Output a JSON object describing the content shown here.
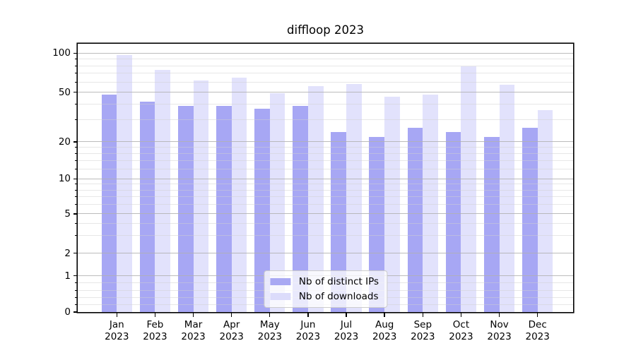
{
  "chart_data": {
    "type": "bar",
    "title": "diffloop 2023",
    "categories": [
      "Jan 2023",
      "Feb 2023",
      "Mar 2023",
      "Apr 2023",
      "May 2023",
      "Jun 2023",
      "Jul 2023",
      "Aug 2023",
      "Sep 2023",
      "Oct 2023",
      "Nov 2023",
      "Dec 2023"
    ],
    "x_tick_line1": [
      "Jan",
      "Feb",
      "Mar",
      "Apr",
      "May",
      "Jun",
      "Jul",
      "Aug",
      "Sep",
      "Oct",
      "Nov",
      "Dec"
    ],
    "x_tick_line2": "2023",
    "series": [
      {
        "name": "Nb of distinct IPs",
        "color": "#a9a9f3",
        "fill": "rgba(138,138,240,0.75)",
        "values": [
          48,
          42,
          39,
          39,
          37,
          39,
          24,
          22,
          26,
          24,
          22,
          26
        ]
      },
      {
        "name": "Nb of downloads",
        "color": "#dcdcfb",
        "fill": "rgba(211,211,250,0.65)",
        "values": [
          97,
          74,
          62,
          65,
          49,
          56,
          58,
          46,
          48,
          79,
          57,
          36
        ]
      }
    ],
    "y_axis": {
      "scale": "asinh-like: logarithmic above 1, linear between 0 and 1",
      "ticks": [
        100,
        50,
        20,
        10,
        5,
        2,
        1,
        0
      ],
      "minor_gridlines": [
        0.2,
        0.4,
        0.6,
        0.8,
        3,
        4,
        6,
        7,
        8,
        9,
        12,
        14,
        16,
        18,
        30,
        40,
        60,
        70,
        80,
        90
      ]
    },
    "legend": {
      "position": "lower center",
      "entries": [
        "Nb of distinct IPs",
        "Nb of downloads"
      ]
    },
    "grid": true,
    "grid_over_bars": true,
    "colors": {
      "axis": "#000000",
      "grid_major": "#b0b0b0",
      "grid_minor": "#cfcfcf",
      "background": "#ffffff",
      "legend_border": "#cccccc"
    }
  }
}
